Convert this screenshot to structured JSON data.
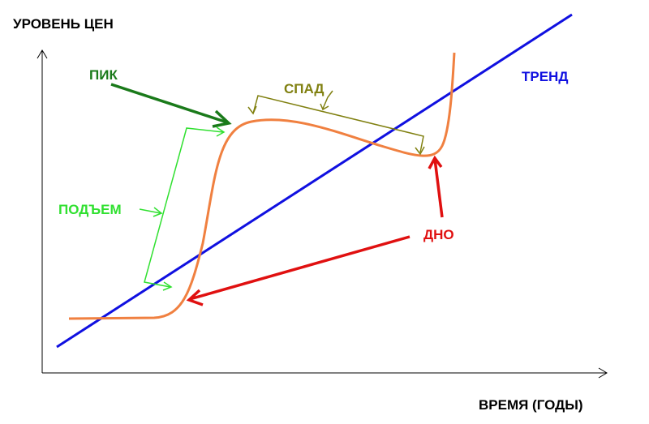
{
  "axes": {
    "y_label": "УРОВЕНЬ ЦЕН",
    "x_label": "ВРЕМЯ (ГОДЫ)"
  },
  "labels": {
    "peak": "ПИК",
    "decline": "СПАД",
    "trend": "ТРЕНД",
    "rise": "ПОДЪЕМ",
    "bottom": "ДНО"
  }
}
